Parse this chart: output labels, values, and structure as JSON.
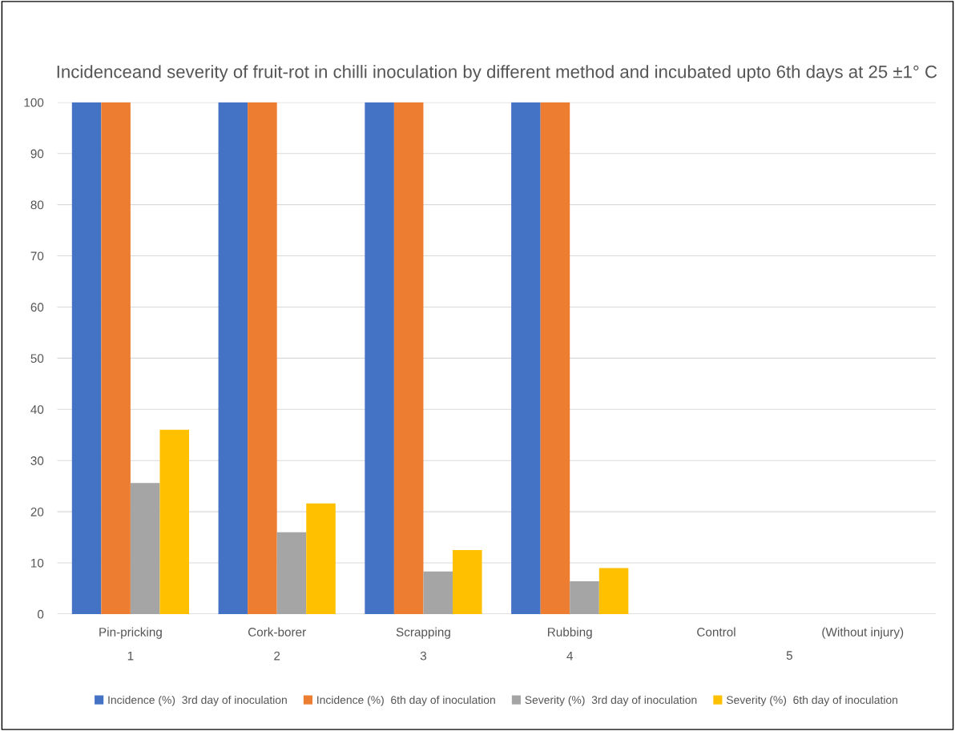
{
  "chart_data": {
    "type": "bar",
    "title": "Incidenceand severity of fruit-rot in chilli inoculation by different method and incubated upto 6th days at 25 ±1° C",
    "categories": [
      "Pin-pricking\n1",
      "Cork-borer\n2",
      "Scrapping\n3",
      "Rubbing\n4",
      "Control",
      "(Without injury)"
    ],
    "series": [
      {
        "name": "Incidence (%)  3rd day of inoculation",
        "color": "#4472c4",
        "values": [
          100,
          100,
          100,
          100,
          0,
          null
        ]
      },
      {
        "name": "Incidence (%)  6th day of inoculation",
        "color": "#ed7d31",
        "values": [
          100,
          100,
          100,
          100,
          0,
          null
        ]
      },
      {
        "name": "Severity (%)  3rd day of inoculation",
        "color": "#a5a5a5",
        "values": [
          25.6,
          16,
          8.3,
          6.4,
          0,
          null
        ]
      },
      {
        "name": "Severity (%)  6th day of inoculation",
        "color": "#ffc000",
        "values": [
          36,
          21.6,
          12.5,
          9,
          0,
          null
        ]
      }
    ],
    "annotations": [
      "5"
    ],
    "ylim": [
      0,
      100
    ],
    "yticks": [
      0,
      10,
      20,
      30,
      40,
      50,
      60,
      70,
      80,
      90,
      100
    ],
    "grid": "y",
    "legend": "bottom"
  }
}
